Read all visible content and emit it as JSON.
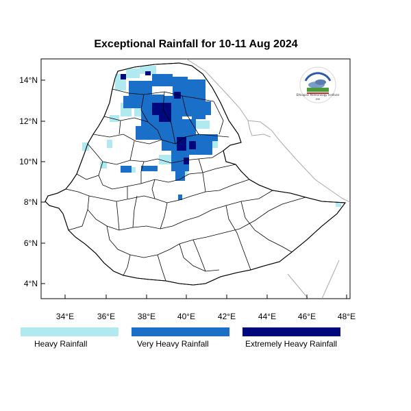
{
  "title": "Exceptional Rainfall for 10-11 Aug 2024",
  "lat_ticks": [
    "14°N",
    "12°N",
    "10°N",
    "8°N",
    "6°N",
    "4°N"
  ],
  "lon_ticks": [
    "34°E",
    "36°E",
    "38°E",
    "40°E",
    "42°E",
    "44°E",
    "46°E",
    "48°E"
  ],
  "legend": [
    {
      "label": "Heavy Rainfall",
      "color": "#b0eaf0"
    },
    {
      "label": "Very Heavy Rainfall",
      "color": "#1a6fc8"
    },
    {
      "label": "Extremely Heavy Rainfall",
      "color": "#00087e"
    }
  ],
  "colors": {
    "heavy": "#b0eaf0",
    "very_heavy": "#1a6fc8",
    "extreme": "#00087e",
    "border": "#000000",
    "neighbor_border": "#a8a8a8"
  },
  "logo": {
    "caption": "Ethiopian Meteorology Institute"
  }
}
